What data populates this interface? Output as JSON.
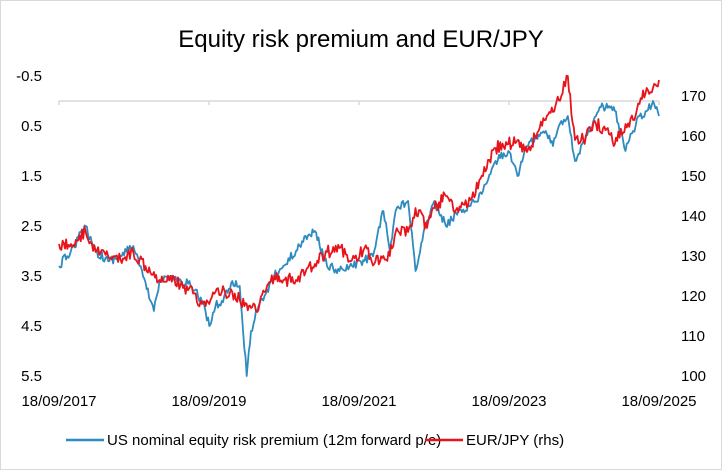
{
  "chart_data": {
    "type": "line",
    "title": "Equity risk premium and EUR/JPY",
    "x_tick_labels": [
      "18/09/2017",
      "18/09/2019",
      "18/09/2021",
      "18/09/2023",
      "18/09/2025"
    ],
    "x_range": [
      "2017-09-18",
      "2025-09-18"
    ],
    "y_left": {
      "reversed": true,
      "range": [
        -0.5,
        5.5
      ],
      "ticks": [
        "-0.5",
        "0.5",
        "1.5",
        "2.5",
        "3.5",
        "4.5",
        "5.5"
      ]
    },
    "y_right": {
      "range": [
        100,
        175
      ],
      "ticks": [
        "100",
        "110",
        "120",
        "130",
        "140",
        "150",
        "160",
        "170"
      ]
    },
    "grid": "none",
    "legend_position": "bottom",
    "series": [
      {
        "name": "US nominal equity risk premium (12m forward p/e)",
        "axis": "left",
        "color": "#2e8bc0",
        "points": [
          [
            "2017-09-18",
            3.3
          ],
          [
            "2017-11-15",
            3.0
          ],
          [
            "2018-01-26",
            2.5
          ],
          [
            "2018-03-15",
            3.0
          ],
          [
            "2018-05-15",
            3.2
          ],
          [
            "2018-07-15",
            3.1
          ],
          [
            "2018-09-15",
            2.9
          ],
          [
            "2018-10-15",
            3.3
          ],
          [
            "2018-12-24",
            4.2
          ],
          [
            "2019-01-20",
            3.6
          ],
          [
            "2019-03-15",
            3.5
          ],
          [
            "2019-05-15",
            3.7
          ],
          [
            "2019-06-15",
            3.6
          ],
          [
            "2019-08-15",
            4.0
          ],
          [
            "2019-09-20",
            4.5
          ],
          [
            "2019-10-20",
            4.1
          ],
          [
            "2019-11-20",
            4.0
          ],
          [
            "2020-01-10",
            3.6
          ],
          [
            "2020-02-15",
            3.7
          ],
          [
            "2020-03-20",
            5.5
          ],
          [
            "2020-04-10",
            4.6
          ],
          [
            "2020-05-10",
            4.2
          ],
          [
            "2020-06-15",
            3.9
          ],
          [
            "2020-08-01",
            3.5
          ],
          [
            "2020-09-15",
            3.3
          ],
          [
            "2020-11-15",
            3.0
          ],
          [
            "2021-01-01",
            2.7
          ],
          [
            "2021-02-15",
            2.6
          ],
          [
            "2021-04-15",
            3.3
          ],
          [
            "2021-06-15",
            3.4
          ],
          [
            "2021-08-15",
            3.3
          ],
          [
            "2021-10-15",
            3.2
          ],
          [
            "2021-12-01",
            3.0
          ],
          [
            "2022-01-15",
            2.2
          ],
          [
            "2022-02-15",
            3.0
          ],
          [
            "2022-03-15",
            2.2
          ],
          [
            "2022-05-15",
            2.0
          ],
          [
            "2022-06-20",
            3.4
          ],
          [
            "2022-08-15",
            2.4
          ],
          [
            "2022-09-20",
            2.0
          ],
          [
            "2022-11-15",
            2.5
          ],
          [
            "2023-01-15",
            2.2
          ],
          [
            "2023-03-15",
            2.1
          ],
          [
            "2023-05-15",
            1.8
          ],
          [
            "2023-07-15",
            1.2
          ],
          [
            "2023-09-15",
            1.0
          ],
          [
            "2023-10-30",
            1.5
          ],
          [
            "2023-12-15",
            0.9
          ],
          [
            "2024-02-15",
            0.7
          ],
          [
            "2024-03-15",
            0.6
          ],
          [
            "2024-04-20",
            0.9
          ],
          [
            "2024-05-30",
            0.4
          ],
          [
            "2024-07-01",
            0.3
          ],
          [
            "2024-08-05",
            1.2
          ],
          [
            "2024-09-15",
            0.8
          ],
          [
            "2024-11-15",
            0.3
          ],
          [
            "2024-12-20",
            0.1
          ],
          [
            "2025-02-15",
            0.2
          ],
          [
            "2025-04-08",
            1.0
          ],
          [
            "2025-05-15",
            0.6
          ],
          [
            "2025-06-15",
            0.3
          ],
          [
            "2025-07-20",
            0.2
          ],
          [
            "2025-08-20",
            0.0
          ],
          [
            "2025-09-18",
            0.3
          ]
        ]
      },
      {
        "name": "EUR/JPY (rhs)",
        "axis": "right",
        "color": "#e8141c",
        "points": [
          [
            "2017-09-18",
            133
          ],
          [
            "2017-11-15",
            133
          ],
          [
            "2018-01-26",
            136
          ],
          [
            "2018-03-15",
            131
          ],
          [
            "2018-05-15",
            130
          ],
          [
            "2018-07-15",
            129
          ],
          [
            "2018-09-15",
            131
          ],
          [
            "2018-10-15",
            129
          ],
          [
            "2018-12-24",
            126
          ],
          [
            "2019-01-20",
            124
          ],
          [
            "2019-03-15",
            125
          ],
          [
            "2019-05-15",
            122
          ],
          [
            "2019-06-15",
            122
          ],
          [
            "2019-08-15",
            118
          ],
          [
            "2019-09-20",
            118
          ],
          [
            "2019-10-20",
            121
          ],
          [
            "2019-11-20",
            121
          ],
          [
            "2020-01-10",
            121
          ],
          [
            "2020-02-15",
            119
          ],
          [
            "2020-03-20",
            118
          ],
          [
            "2020-04-10",
            117
          ],
          [
            "2020-05-10",
            116
          ],
          [
            "2020-06-15",
            121
          ],
          [
            "2020-08-01",
            125
          ],
          [
            "2020-09-15",
            124
          ],
          [
            "2020-11-15",
            124
          ],
          [
            "2021-01-01",
            126
          ],
          [
            "2021-02-15",
            128
          ],
          [
            "2021-04-15",
            131
          ],
          [
            "2021-06-15",
            132
          ],
          [
            "2021-08-15",
            129
          ],
          [
            "2021-10-15",
            132
          ],
          [
            "2021-12-01",
            128
          ],
          [
            "2022-01-15",
            130
          ],
          [
            "2022-02-15",
            130
          ],
          [
            "2022-03-15",
            136
          ],
          [
            "2022-05-15",
            136
          ],
          [
            "2022-06-20",
            142
          ],
          [
            "2022-08-15",
            137
          ],
          [
            "2022-09-20",
            142
          ],
          [
            "2022-11-15",
            145
          ],
          [
            "2023-01-15",
            141
          ],
          [
            "2023-03-15",
            144
          ],
          [
            "2023-05-15",
            150
          ],
          [
            "2023-07-15",
            157
          ],
          [
            "2023-09-15",
            158
          ],
          [
            "2023-10-30",
            159
          ],
          [
            "2023-12-15",
            156
          ],
          [
            "2024-02-15",
            162
          ],
          [
            "2024-03-15",
            164
          ],
          [
            "2024-04-20",
            166
          ],
          [
            "2024-05-30",
            170
          ],
          [
            "2024-07-01",
            175
          ],
          [
            "2024-08-05",
            159
          ],
          [
            "2024-09-15",
            159
          ],
          [
            "2024-11-15",
            163
          ],
          [
            "2024-12-20",
            162
          ],
          [
            "2025-02-15",
            158
          ],
          [
            "2025-04-08",
            163
          ],
          [
            "2025-05-15",
            164
          ],
          [
            "2025-06-15",
            168
          ],
          [
            "2025-07-20",
            172
          ],
          [
            "2025-08-20",
            172
          ],
          [
            "2025-09-18",
            174
          ]
        ]
      }
    ]
  }
}
